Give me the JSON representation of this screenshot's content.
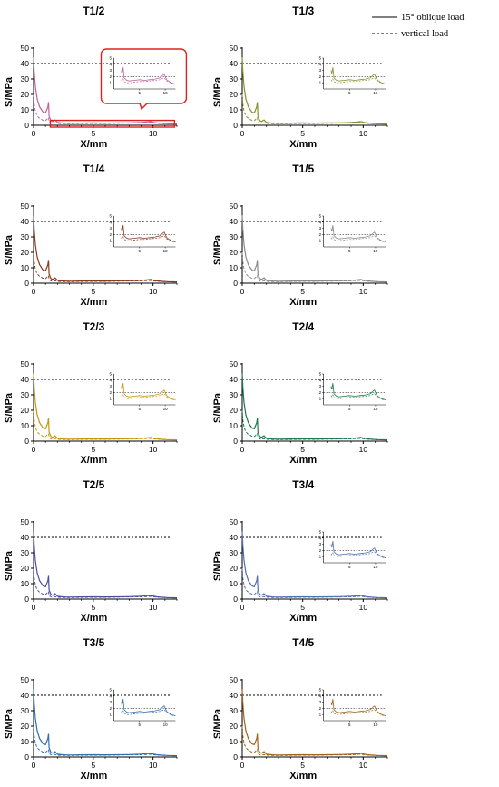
{
  "legend": {
    "solid_label": "15° oblique load",
    "dashed_label": "vertical load"
  },
  "chart_data": [
    {
      "type": "line",
      "title": "T1/2",
      "color": "#c0609a",
      "xlabel": "X/mm",
      "ylabel": "S/MPa",
      "xlim": [
        0,
        12
      ],
      "ylim": [
        0,
        50
      ],
      "xticks": [
        0,
        5,
        10
      ],
      "yticks": [
        0,
        10,
        20,
        30,
        40,
        50
      ],
      "reference_line": 40,
      "highlighted": true,
      "inset": {
        "xlim": [
          0,
          12
        ],
        "ylim": [
          0,
          5
        ],
        "xticks": [
          5,
          10
        ],
        "yticks": [
          1,
          2,
          3,
          4,
          5
        ],
        "reference_line": 2
      }
    },
    {
      "type": "line",
      "title": "T1/3",
      "color": "#8a8f2a",
      "xlabel": "X/mm",
      "ylabel": "S/MPa",
      "xlim": [
        0,
        12
      ],
      "ylim": [
        0,
        50
      ],
      "xticks": [
        0,
        5,
        10
      ],
      "yticks": [
        0,
        10,
        20,
        30,
        40,
        50
      ],
      "reference_line": 40,
      "highlighted": false,
      "inset": {
        "xlim": [
          0,
          12
        ],
        "ylim": [
          0,
          5
        ],
        "xticks": [
          5,
          10
        ],
        "yticks": [
          1,
          2,
          3,
          4,
          5
        ],
        "reference_line": 2
      }
    },
    {
      "type": "line",
      "title": "T1/4",
      "color": "#8b3a1e",
      "xlabel": "X/mm",
      "ylabel": "S/MPa",
      "xlim": [
        0,
        12
      ],
      "ylim": [
        0,
        50
      ],
      "xticks": [
        0,
        5,
        10
      ],
      "yticks": [
        0,
        10,
        20,
        30,
        40,
        50
      ],
      "reference_line": 40,
      "highlighted": false,
      "inset": {
        "xlim": [
          0,
          12
        ],
        "ylim": [
          0,
          5
        ],
        "xticks": [
          5,
          10
        ],
        "yticks": [
          1,
          2,
          3,
          4,
          5
        ],
        "reference_line": 2
      }
    },
    {
      "type": "line",
      "title": "T1/5",
      "color": "#8a8a8a",
      "xlabel": "X/mm",
      "ylabel": "S/MPa",
      "xlim": [
        0,
        12
      ],
      "ylim": [
        0,
        50
      ],
      "xticks": [
        0,
        5,
        10
      ],
      "yticks": [
        0,
        10,
        20,
        30,
        40,
        50
      ],
      "reference_line": 40,
      "highlighted": false,
      "inset": {
        "xlim": [
          0,
          12
        ],
        "ylim": [
          0,
          5
        ],
        "xticks": [
          5,
          10
        ],
        "yticks": [
          1,
          2,
          3,
          4,
          5
        ],
        "reference_line": 2
      }
    },
    {
      "type": "line",
      "title": "T2/3",
      "color": "#c8960c",
      "xlabel": "X/mm",
      "ylabel": "S/MPa",
      "xlim": [
        0,
        12
      ],
      "ylim": [
        0,
        50
      ],
      "xticks": [
        0,
        5,
        10
      ],
      "yticks": [
        0,
        10,
        20,
        30,
        40,
        50
      ],
      "reference_line": 40,
      "highlighted": false,
      "inset": {
        "xlim": [
          0,
          12
        ],
        "ylim": [
          0,
          5
        ],
        "xticks": [
          5,
          10
        ],
        "yticks": [
          1,
          2,
          3,
          4,
          5
        ],
        "reference_line": 2
      }
    },
    {
      "type": "line",
      "title": "T2/4",
      "color": "#1f7a4a",
      "xlabel": "X/mm",
      "ylabel": "S/MPa",
      "xlim": [
        0,
        12
      ],
      "ylim": [
        0,
        50
      ],
      "xticks": [
        0,
        5,
        10
      ],
      "yticks": [
        0,
        10,
        20,
        30,
        40,
        50
      ],
      "reference_line": 40,
      "highlighted": false,
      "inset": {
        "xlim": [
          0,
          12
        ],
        "ylim": [
          0,
          5
        ],
        "xticks": [
          5,
          10
        ],
        "yticks": [
          1,
          2,
          3,
          4,
          5
        ],
        "reference_line": 2
      }
    },
    {
      "type": "line",
      "title": "T2/5",
      "color": "#4a4fa3",
      "xlabel": "X/mm",
      "ylabel": "S/MPa",
      "xlim": [
        0,
        12
      ],
      "ylim": [
        0,
        50
      ],
      "xticks": [
        0,
        5,
        10
      ],
      "yticks": [
        0,
        10,
        20,
        30,
        40,
        50
      ],
      "reference_line": 40,
      "highlighted": false,
      "inset": null
    },
    {
      "type": "line",
      "title": "T3/4",
      "color": "#4f6fb0",
      "xlabel": "X/mm",
      "ylabel": "S/MPa",
      "xlim": [
        0,
        12
      ],
      "ylim": [
        0,
        50
      ],
      "xticks": [
        0,
        5,
        10
      ],
      "yticks": [
        0,
        10,
        20,
        30,
        40,
        50
      ],
      "reference_line": 40,
      "highlighted": false,
      "inset": {
        "xlim": [
          0,
          12
        ],
        "ylim": [
          0,
          5
        ],
        "xticks": [
          5,
          10
        ],
        "yticks": [
          1,
          2,
          3,
          4,
          5
        ],
        "reference_line": 2
      }
    },
    {
      "type": "line",
      "title": "T3/5",
      "color": "#2e6fb0",
      "xlabel": "X/mm",
      "ylabel": "S/MPa",
      "xlim": [
        0,
        12
      ],
      "ylim": [
        0,
        50
      ],
      "xticks": [
        0,
        5,
        10
      ],
      "yticks": [
        0,
        10,
        20,
        30,
        40,
        50
      ],
      "reference_line": 40,
      "highlighted": false,
      "inset": {
        "xlim": [
          0,
          12
        ],
        "ylim": [
          0,
          5
        ],
        "xticks": [
          5,
          10
        ],
        "yticks": [
          1,
          2,
          3,
          4,
          5
        ],
        "reference_line": 2
      }
    },
    {
      "type": "line",
      "title": "T4/5",
      "color": "#a0621a",
      "xlabel": "X/mm",
      "ylabel": "S/MPa",
      "xlim": [
        0,
        12
      ],
      "ylim": [
        0,
        50
      ],
      "xticks": [
        0,
        5,
        10
      ],
      "yticks": [
        0,
        10,
        20,
        30,
        40,
        50
      ],
      "reference_line": 40,
      "highlighted": false,
      "inset": {
        "xlim": [
          0,
          12
        ],
        "ylim": [
          0,
          5
        ],
        "xticks": [
          5,
          10
        ],
        "yticks": [
          1,
          2,
          3,
          4,
          5
        ],
        "reference_line": 2
      }
    }
  ],
  "series_profiles": {
    "oblique": {
      "x": [
        0,
        0.05,
        0.15,
        0.3,
        0.5,
        0.8,
        1.0,
        1.2,
        1.25,
        1.3,
        1.45,
        1.6,
        1.8,
        2.0,
        2.5,
        3,
        4,
        5,
        6,
        7,
        8,
        9,
        9.5,
        9.8,
        10,
        10.3,
        10.8,
        11.2,
        12
      ],
      "y": [
        44,
        35,
        25,
        17,
        12,
        8.5,
        8,
        12,
        15,
        6,
        3,
        2.5,
        3.5,
        1.8,
        1.4,
        1.3,
        1.4,
        1.5,
        1.4,
        1.5,
        1.6,
        1.8,
        2.2,
        2.4,
        2.0,
        1.5,
        1.2,
        1.0,
        0.8
      ]
    },
    "vertical": {
      "x": [
        0,
        0.05,
        0.15,
        0.3,
        0.5,
        0.8,
        1.0,
        1.2,
        1.25,
        1.3,
        1.45,
        1.6,
        1.8,
        2.0,
        2.5,
        3,
        4,
        5,
        6,
        7,
        8,
        9,
        9.5,
        9.8,
        10,
        10.3,
        10.8,
        11.2,
        12
      ],
      "y": [
        20,
        14,
        9,
        6,
        4.5,
        3.2,
        3.0,
        4.5,
        5,
        2.5,
        1.5,
        1.3,
        1.6,
        1.2,
        1.0,
        1.0,
        1.1,
        1.2,
        1.2,
        1.3,
        1.4,
        1.5,
        1.7,
        1.8,
        1.6,
        1.3,
        1.1,
        0.9,
        0.8
      ]
    }
  }
}
